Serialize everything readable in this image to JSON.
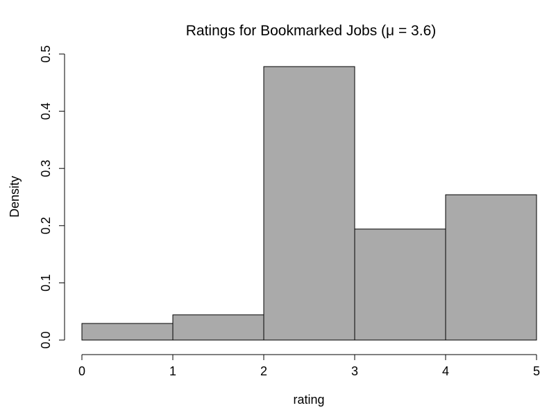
{
  "chart_data": {
    "type": "bar",
    "title": "Ratings for Bookmarked Jobs (μ = 3.6)",
    "xlabel": "rating",
    "ylabel": "Density",
    "bins": [
      {
        "x0": 0,
        "x1": 1,
        "density": 0.029
      },
      {
        "x0": 1,
        "x1": 2,
        "density": 0.044
      },
      {
        "x0": 2,
        "x1": 3,
        "density": 0.478
      },
      {
        "x0": 3,
        "x1": 4,
        "density": 0.194
      },
      {
        "x0": 4,
        "x1": 5,
        "density": 0.254
      }
    ],
    "xlim": [
      0,
      5
    ],
    "ylim": [
      0,
      0.5
    ],
    "xticks": [
      "0",
      "1",
      "2",
      "3",
      "4",
      "5"
    ],
    "yticks": [
      "0.0",
      "0.1",
      "0.2",
      "0.3",
      "0.4",
      "0.5"
    ],
    "bar_color": "#aaaaaa",
    "bar_edge_color": "#000000",
    "grid": false,
    "legend": "none"
  }
}
